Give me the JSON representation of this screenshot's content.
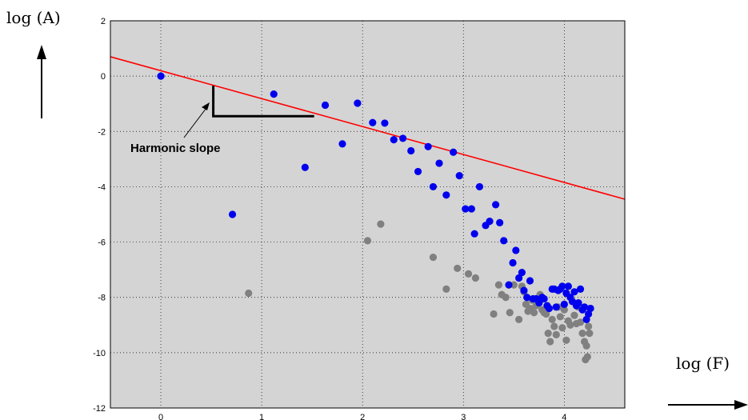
{
  "chart_data": {
    "type": "scatter",
    "xlabel": "log (F)",
    "ylabel": "log (A)",
    "xlim": [
      -0.5,
      4.6
    ],
    "ylim": [
      -12,
      2
    ],
    "xticks": [
      0,
      1,
      2,
      3,
      4
    ],
    "yticks": [
      2,
      0,
      -2,
      -4,
      -6,
      -8,
      -10,
      -12
    ],
    "grid": true,
    "background": "#d4d4d4",
    "annotations": [
      {
        "text": "Harmonic slope"
      }
    ],
    "colors": {
      "blue": "#0000ee",
      "gray": "#808080",
      "fit_line": "#ff0000",
      "slope_marker": "#000000"
    },
    "series": [
      {
        "color": "#0000ee",
        "points": [
          [
            0.0,
            0.0
          ],
          [
            0.71,
            -5.0
          ],
          [
            1.12,
            -0.65
          ],
          [
            1.43,
            -3.3
          ],
          [
            1.63,
            -1.05
          ],
          [
            1.8,
            -2.45
          ],
          [
            1.95,
            -0.98
          ],
          [
            2.1,
            -1.68
          ],
          [
            2.22,
            -1.7
          ],
          [
            2.31,
            -2.3
          ],
          [
            2.4,
            -2.25
          ],
          [
            2.48,
            -2.7
          ],
          [
            2.55,
            -3.45
          ],
          [
            2.65,
            -2.55
          ],
          [
            2.7,
            -4.0
          ],
          [
            2.76,
            -3.15
          ],
          [
            2.83,
            -4.3
          ],
          [
            2.9,
            -2.75
          ],
          [
            2.96,
            -3.6
          ],
          [
            3.02,
            -4.8
          ],
          [
            3.08,
            -4.8
          ],
          [
            3.11,
            -5.7
          ],
          [
            3.16,
            -4.0
          ],
          [
            3.22,
            -5.4
          ],
          [
            3.26,
            -5.25
          ],
          [
            3.32,
            -4.65
          ],
          [
            3.36,
            -5.3
          ],
          [
            3.4,
            -5.95
          ],
          [
            3.45,
            -7.55
          ],
          [
            3.49,
            -6.75
          ],
          [
            3.52,
            -6.3
          ],
          [
            3.55,
            -7.3
          ],
          [
            3.58,
            -7.1
          ],
          [
            3.6,
            -7.75
          ],
          [
            3.63,
            -8.0
          ],
          [
            3.66,
            -7.4
          ],
          [
            3.69,
            -8.05
          ],
          [
            3.72,
            -8.05
          ],
          [
            3.75,
            -8.2
          ],
          [
            3.78,
            -8.0
          ],
          [
            3.8,
            -8.05
          ],
          [
            3.83,
            -8.3
          ],
          [
            3.85,
            -8.4
          ],
          [
            3.88,
            -7.7
          ],
          [
            3.9,
            -7.7
          ],
          [
            3.92,
            -8.35
          ],
          [
            3.94,
            -7.75
          ],
          [
            3.96,
            -7.7
          ],
          [
            3.98,
            -7.6
          ],
          [
            4.0,
            -8.25
          ],
          [
            4.02,
            -7.85
          ],
          [
            4.04,
            -7.6
          ],
          [
            4.06,
            -8.0
          ],
          [
            4.08,
            -8.15
          ],
          [
            4.1,
            -7.8
          ],
          [
            4.12,
            -8.3
          ],
          [
            4.14,
            -8.2
          ],
          [
            4.16,
            -7.7
          ],
          [
            4.18,
            -8.45
          ],
          [
            4.2,
            -8.35
          ],
          [
            4.22,
            -8.8
          ],
          [
            4.24,
            -8.6
          ],
          [
            4.26,
            -8.4
          ]
        ]
      },
      {
        "color": "#808080",
        "points": [
          [
            0.87,
            -7.85
          ],
          [
            2.05,
            -5.95
          ],
          [
            2.18,
            -5.35
          ],
          [
            2.7,
            -6.55
          ],
          [
            2.83,
            -7.7
          ],
          [
            2.94,
            -6.95
          ],
          [
            3.05,
            -7.15
          ],
          [
            3.12,
            -7.3
          ],
          [
            3.3,
            -8.6
          ],
          [
            3.35,
            -7.55
          ],
          [
            3.38,
            -7.9
          ],
          [
            3.42,
            -8.0
          ],
          [
            3.46,
            -8.55
          ],
          [
            3.5,
            -7.55
          ],
          [
            3.55,
            -8.8
          ],
          [
            3.58,
            -7.6
          ],
          [
            3.6,
            -7.8
          ],
          [
            3.62,
            -8.25
          ],
          [
            3.64,
            -8.5
          ],
          [
            3.66,
            -8.4
          ],
          [
            3.68,
            -8.1
          ],
          [
            3.7,
            -8.55
          ],
          [
            3.72,
            -8.3
          ],
          [
            3.74,
            -8.2
          ],
          [
            3.76,
            -7.9
          ],
          [
            3.78,
            -8.45
          ],
          [
            3.8,
            -8.55
          ],
          [
            3.82,
            -8.6
          ],
          [
            3.84,
            -9.3
          ],
          [
            3.86,
            -9.6
          ],
          [
            3.88,
            -8.8
          ],
          [
            3.9,
            -9.05
          ],
          [
            3.92,
            -9.35
          ],
          [
            3.94,
            -8.35
          ],
          [
            3.96,
            -8.7
          ],
          [
            3.98,
            -9.1
          ],
          [
            4.0,
            -8.45
          ],
          [
            4.02,
            -9.55
          ],
          [
            4.04,
            -8.85
          ],
          [
            4.06,
            -9.0
          ],
          [
            4.08,
            -8.15
          ],
          [
            4.1,
            -8.65
          ],
          [
            4.12,
            -8.95
          ],
          [
            4.14,
            -8.35
          ],
          [
            4.16,
            -8.9
          ],
          [
            4.18,
            -9.3
          ],
          [
            4.2,
            -9.6
          ],
          [
            4.22,
            -9.75
          ],
          [
            4.24,
            -9.05
          ],
          [
            4.25,
            -9.3
          ],
          [
            4.21,
            -10.25
          ],
          [
            4.23,
            -10.15
          ]
        ]
      }
    ],
    "fit_line": {
      "x": [
        -0.5,
        4.6
      ],
      "y": [
        0.7,
        -4.45
      ]
    },
    "slope_marker": {
      "x": [
        0.52,
        0.52,
        1.52
      ],
      "y": [
        -0.35,
        -1.45,
        -1.45
      ]
    }
  }
}
